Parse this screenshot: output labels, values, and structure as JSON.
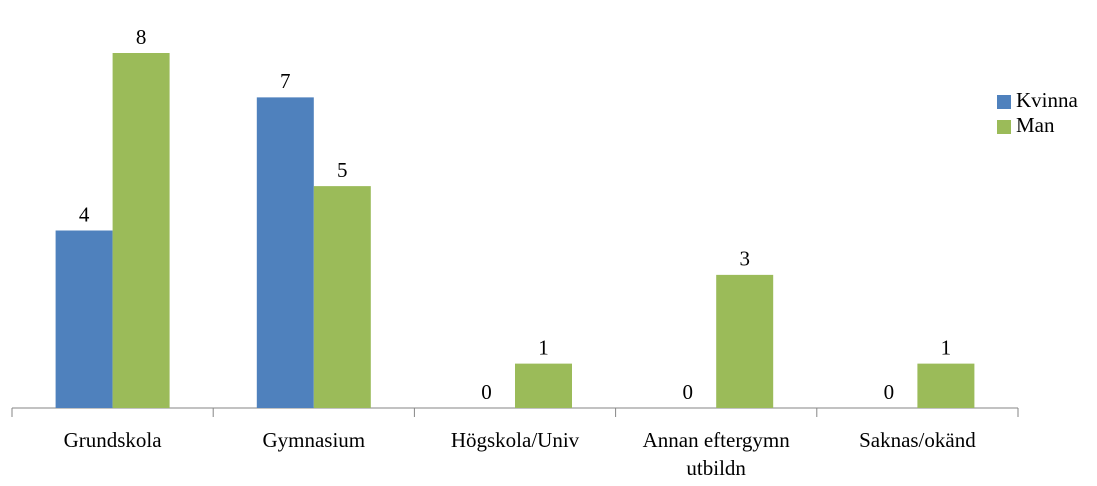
{
  "chart_data": {
    "type": "bar",
    "categories": [
      "Grundskola",
      "Gymnasium",
      "Högskola/Univ",
      "Annan eftergymn utbildn",
      "Saknas/okänd"
    ],
    "series": [
      {
        "name": "Kvinna",
        "color": "#4f81bd",
        "values": [
          4,
          7,
          0,
          0,
          0
        ]
      },
      {
        "name": "Man",
        "color": "#9bbb59",
        "values": [
          8,
          5,
          1,
          3,
          1
        ]
      }
    ],
    "ylim": [
      0,
      8
    ],
    "legend": "right"
  }
}
